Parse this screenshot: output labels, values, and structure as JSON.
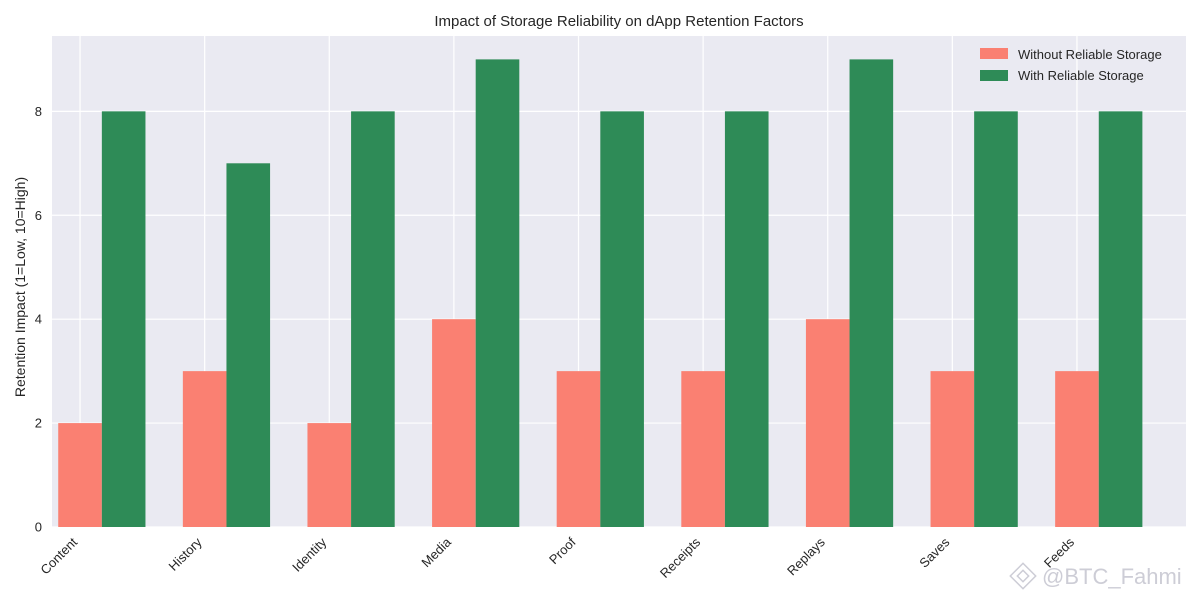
{
  "chart_data": {
    "type": "bar",
    "title": "Impact of Storage Reliability on dApp Retention Factors",
    "xlabel": "",
    "ylabel": "Retention Impact (1=Low, 10=High)",
    "categories": [
      "Content",
      "History",
      "Identity",
      "Media",
      "Proof",
      "Receipts",
      "Replays",
      "Saves",
      "Feeds"
    ],
    "series": [
      {
        "name": "Without Reliable Storage",
        "color": "#fa8072",
        "values": [
          2,
          3,
          2,
          4,
          3,
          3,
          4,
          3,
          3
        ]
      },
      {
        "name": "With Reliable Storage",
        "color": "#2e8b57",
        "values": [
          8,
          7,
          8,
          9,
          8,
          8,
          9,
          8,
          8
        ]
      }
    ],
    "ylim": [
      0,
      9.45
    ],
    "yticks": [
      0,
      2,
      4,
      6,
      8
    ],
    "grid": true,
    "legend_position": "top-right"
  },
  "watermark": {
    "text": "@BTC_Fahmi",
    "icon": "binance-logo-icon"
  }
}
